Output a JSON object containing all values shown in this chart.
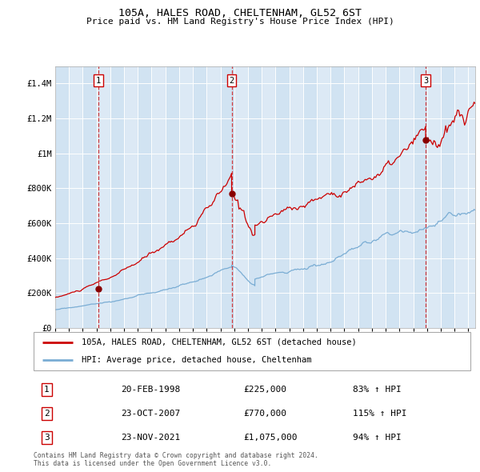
{
  "title": "105A, HALES ROAD, CHELTENHAM, GL52 6ST",
  "subtitle": "Price paid vs. HM Land Registry's House Price Index (HPI)",
  "xlim": [
    1995.0,
    2025.5
  ],
  "ylim": [
    0,
    1500000
  ],
  "yticks": [
    0,
    200000,
    400000,
    600000,
    800000,
    1000000,
    1200000,
    1400000
  ],
  "ytick_labels": [
    "£0",
    "£200K",
    "£400K",
    "£600K",
    "£800K",
    "£1M",
    "£1.2M",
    "£1.4M"
  ],
  "background_color": "#ffffff",
  "plot_bg_color": "#dce9f5",
  "grid_color": "#ffffff",
  "red_line_color": "#cc0000",
  "blue_line_color": "#7aadd4",
  "dashed_line_color": "#cc0000",
  "marker_color": "#880000",
  "sale1_date": 1998.13,
  "sale1_price": 225000,
  "sale2_date": 2007.81,
  "sale2_price": 770000,
  "sale3_date": 2021.9,
  "sale3_price": 1075000,
  "legend_label_red": "105A, HALES ROAD, CHELTENHAM, GL52 6ST (detached house)",
  "legend_label_blue": "HPI: Average price, detached house, Cheltenham",
  "table_data": [
    [
      "1",
      "20-FEB-1998",
      "£225,000",
      "83% ↑ HPI"
    ],
    [
      "2",
      "23-OCT-2007",
      "£770,000",
      "115% ↑ HPI"
    ],
    [
      "3",
      "23-NOV-2021",
      "£1,075,000",
      "94% ↑ HPI"
    ]
  ],
  "footer": "Contains HM Land Registry data © Crown copyright and database right 2024.\nThis data is licensed under the Open Government Licence v3.0.",
  "xticks": [
    1995,
    1996,
    1997,
    1998,
    1999,
    2000,
    2001,
    2002,
    2003,
    2004,
    2005,
    2006,
    2007,
    2008,
    2009,
    2010,
    2011,
    2012,
    2013,
    2014,
    2015,
    2016,
    2017,
    2018,
    2019,
    2020,
    2021,
    2022,
    2023,
    2024,
    2025
  ]
}
